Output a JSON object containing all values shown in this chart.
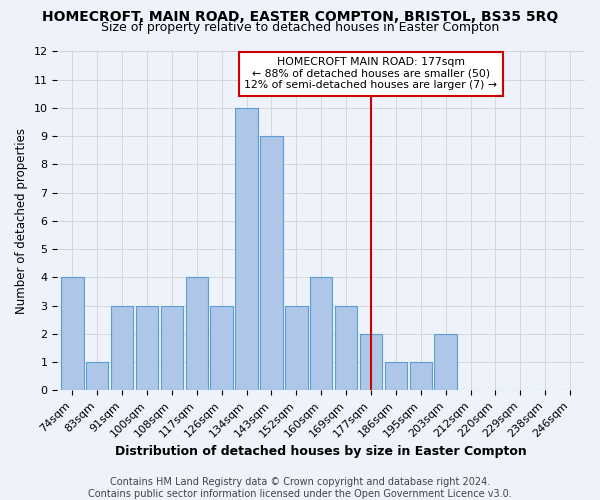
{
  "title": "HOMECROFT, MAIN ROAD, EASTER COMPTON, BRISTOL, BS35 5RQ",
  "subtitle": "Size of property relative to detached houses in Easter Compton",
  "xlabel": "Distribution of detached houses by size in Easter Compton",
  "ylabel": "Number of detached properties",
  "categories": [
    "74sqm",
    "83sqm",
    "91sqm",
    "100sqm",
    "108sqm",
    "117sqm",
    "126sqm",
    "134sqm",
    "143sqm",
    "152sqm",
    "160sqm",
    "169sqm",
    "177sqm",
    "186sqm",
    "195sqm",
    "203sqm",
    "212sqm",
    "220sqm",
    "229sqm",
    "238sqm",
    "246sqm"
  ],
  "values": [
    4,
    1,
    3,
    3,
    3,
    4,
    3,
    10,
    9,
    3,
    4,
    3,
    2,
    1,
    1,
    2,
    0,
    0,
    0,
    0,
    0
  ],
  "bar_color": "#aec6e8",
  "bar_edge_color": "#5a9fd4",
  "background_color": "#eef2fa",
  "grid_color": "#cccccc",
  "vline_x_index": 12,
  "vline_color": "#cc0000",
  "annotation_text": "HOMECROFT MAIN ROAD: 177sqm\n← 88% of detached houses are smaller (50)\n12% of semi-detached houses are larger (7) →",
  "annotation_box_color": "#ffffff",
  "annotation_box_edge": "#cc0000",
  "ylim": [
    0,
    12
  ],
  "yticks": [
    0,
    1,
    2,
    3,
    4,
    5,
    6,
    7,
    8,
    9,
    10,
    11,
    12
  ],
  "footer": "Contains HM Land Registry data © Crown copyright and database right 2024.\nContains public sector information licensed under the Open Government Licence v3.0.",
  "title_fontsize": 10,
  "subtitle_fontsize": 9,
  "xlabel_fontsize": 9,
  "ylabel_fontsize": 8.5,
  "tick_fontsize": 8,
  "footer_fontsize": 7
}
